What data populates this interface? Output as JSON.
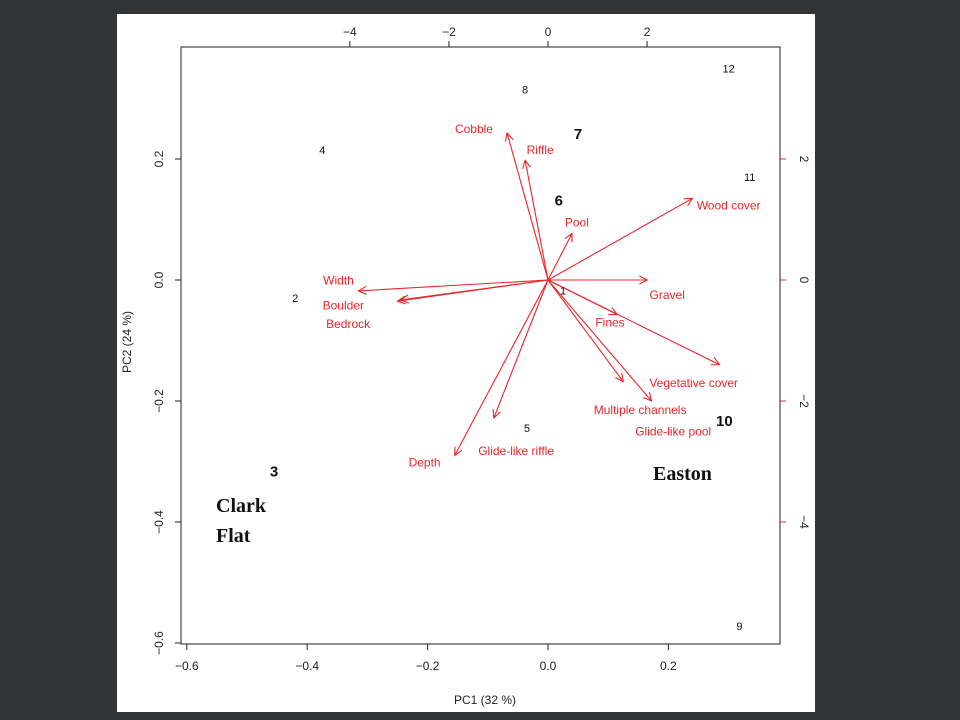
{
  "chart_data": {
    "type": "scatter",
    "subtype": "biplot",
    "xlabel": "PC1 (32 %)",
    "ylabel": "PC2 (24 %)",
    "xlim": [
      -0.62,
      0.38
    ],
    "ylim": [
      -0.6,
      0.4
    ],
    "x_ticks": [
      -0.6,
      -0.4,
      -0.2,
      0.0,
      0.2
    ],
    "y_ticks": [
      -0.6,
      -0.4,
      -0.2,
      0.0,
      0.2
    ],
    "x_tick_labels": [
      "−0.6",
      "−0.4",
      "−0.2",
      "0.0",
      "0.2"
    ],
    "y_tick_labels": [
      "−0.6",
      "−0.4",
      "−0.2",
      "0.0",
      "0.2"
    ],
    "top_axis": {
      "scale_factor": 0.0823,
      "ticks": [
        -4,
        -2,
        0,
        2
      ],
      "tick_labels": [
        "−4",
        "−2",
        "0",
        "2"
      ]
    },
    "right_axis": {
      "scale_factor": 0.1,
      "ticks": [
        -4,
        -2,
        0,
        2
      ],
      "tick_labels": [
        "−4",
        "−2",
        "0",
        "2"
      ]
    },
    "grid": false,
    "colors": {
      "points": "#111111",
      "vectors": "#e8272b"
    },
    "sites": [
      {
        "label": "1",
        "x": 0.025,
        "y": -0.017,
        "bold": false
      },
      {
        "label": "2",
        "x": -0.42,
        "y": -0.03,
        "bold": false
      },
      {
        "label": "3",
        "x": -0.455,
        "y": -0.318,
        "bold": true
      },
      {
        "label": "4",
        "x": -0.375,
        "y": 0.215,
        "bold": false
      },
      {
        "label": "5",
        "x": -0.035,
        "y": -0.245,
        "bold": false
      },
      {
        "label": "6",
        "x": 0.018,
        "y": 0.13,
        "bold": true
      },
      {
        "label": "7",
        "x": 0.05,
        "y": 0.24,
        "bold": true
      },
      {
        "label": "8",
        "x": -0.038,
        "y": 0.315,
        "bold": false
      },
      {
        "label": "9",
        "x": 0.318,
        "y": -0.572,
        "bold": false
      },
      {
        "label": "10",
        "x": 0.293,
        "y": -0.235,
        "bold": true
      },
      {
        "label": "11",
        "x": 0.335,
        "y": 0.17,
        "bold": false
      },
      {
        "label": "12",
        "x": 0.3,
        "y": 0.35,
        "bold": false
      }
    ],
    "vectors": [
      {
        "name": "Cobble",
        "x": -0.068,
        "y": 0.243,
        "lx": -0.123,
        "ly": 0.25,
        "anchor": "middle"
      },
      {
        "name": "Riffle",
        "x": -0.038,
        "y": 0.198,
        "lx": -0.013,
        "ly": 0.215,
        "anchor": "middle"
      },
      {
        "name": "Pool",
        "x": 0.04,
        "y": 0.077,
        "lx": 0.048,
        "ly": 0.095,
        "anchor": "middle"
      },
      {
        "name": "Wood cover",
        "x": 0.24,
        "y": 0.135,
        "lx": 0.247,
        "ly": 0.123,
        "anchor": "start"
      },
      {
        "name": "Width",
        "x": -0.315,
        "y": -0.018,
        "lx": -0.348,
        "ly": -0.001,
        "anchor": "middle"
      },
      {
        "name": "Boulder",
        "x": -0.245,
        "y": -0.033,
        "lx": -0.34,
        "ly": -0.042,
        "anchor": "middle"
      },
      {
        "name": "Bedrock",
        "x": -0.25,
        "y": -0.035,
        "lx": -0.332,
        "ly": -0.073,
        "anchor": "middle"
      },
      {
        "name": "Gravel",
        "x": 0.165,
        "y": 0.0,
        "lx": 0.198,
        "ly": -0.025,
        "anchor": "middle"
      },
      {
        "name": "Fines",
        "x": 0.115,
        "y": -0.057,
        "lx": 0.103,
        "ly": -0.07,
        "anchor": "middle"
      },
      {
        "name": "Vegetative cover",
        "x": 0.285,
        "y": -0.14,
        "lx": 0.242,
        "ly": -0.17,
        "anchor": "middle"
      },
      {
        "name": "Multiple channels",
        "x": 0.125,
        "y": -0.168,
        "lx": 0.153,
        "ly": -0.215,
        "anchor": "middle"
      },
      {
        "name": "Glide-like pool",
        "x": 0.172,
        "y": -0.2,
        "lx": 0.208,
        "ly": -0.25,
        "anchor": "middle"
      },
      {
        "name": "Glide-like riffle",
        "x": -0.09,
        "y": -0.228,
        "lx": -0.053,
        "ly": -0.283,
        "anchor": "middle"
      },
      {
        "name": "Depth",
        "x": -0.155,
        "y": -0.29,
        "lx": -0.205,
        "ly": -0.302,
        "anchor": "middle"
      }
    ],
    "annotations": [
      {
        "text": "Clark",
        "x": -0.545,
        "y": -0.37
      },
      {
        "text": "Flat",
        "x": -0.545,
        "y": -0.42
      },
      {
        "text": "Easton",
        "x": 0.175,
        "y": -0.322
      }
    ]
  }
}
